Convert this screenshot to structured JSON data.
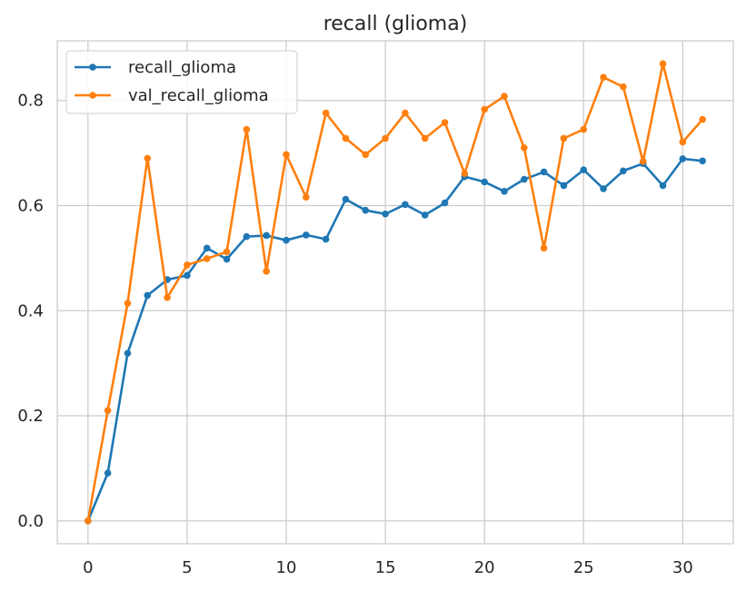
{
  "chart_data": {
    "type": "line",
    "title": "recall (glioma)",
    "xlabel": "",
    "ylabel": "",
    "xlim": [
      -1.55,
      32.55
    ],
    "ylim": [
      -0.0435,
      0.9135
    ],
    "xticks": [
      0,
      5,
      10,
      15,
      20,
      25,
      30
    ],
    "yticks": [
      0.0,
      0.2,
      0.4,
      0.6,
      0.8
    ],
    "xtick_labels": [
      "0",
      "5",
      "10",
      "15",
      "20",
      "25",
      "30"
    ],
    "ytick_labels": [
      "0.0",
      "0.2",
      "0.4",
      "0.6",
      "0.8"
    ],
    "grid": true,
    "legend_position": "top-left",
    "x": [
      0,
      1,
      2,
      3,
      4,
      5,
      6,
      7,
      8,
      9,
      10,
      11,
      12,
      13,
      14,
      15,
      16,
      17,
      18,
      19,
      20,
      21,
      22,
      23,
      24,
      25,
      26,
      27,
      28,
      29,
      30,
      31
    ],
    "series": [
      {
        "name": "recall_glioma",
        "color": "#1f77b4",
        "values": [
          0.0,
          0.091,
          0.319,
          0.429,
          0.459,
          0.467,
          0.519,
          0.498,
          0.541,
          0.543,
          0.534,
          0.544,
          0.536,
          0.612,
          0.591,
          0.584,
          0.602,
          0.582,
          0.605,
          0.655,
          0.645,
          0.627,
          0.65,
          0.664,
          0.638,
          0.668,
          0.632,
          0.666,
          0.68,
          0.638,
          0.689,
          0.685
        ]
      },
      {
        "name": "val_recall_glioma",
        "color": "#ff7f0e",
        "values": [
          0.0,
          0.21,
          0.414,
          0.69,
          0.425,
          0.487,
          0.499,
          0.512,
          0.745,
          0.475,
          0.697,
          0.616,
          0.776,
          0.728,
          0.697,
          0.728,
          0.776,
          0.728,
          0.758,
          0.661,
          0.783,
          0.808,
          0.71,
          0.519,
          0.728,
          0.745,
          0.844,
          0.826,
          0.684,
          0.87,
          0.721,
          0.764
        ]
      }
    ]
  }
}
